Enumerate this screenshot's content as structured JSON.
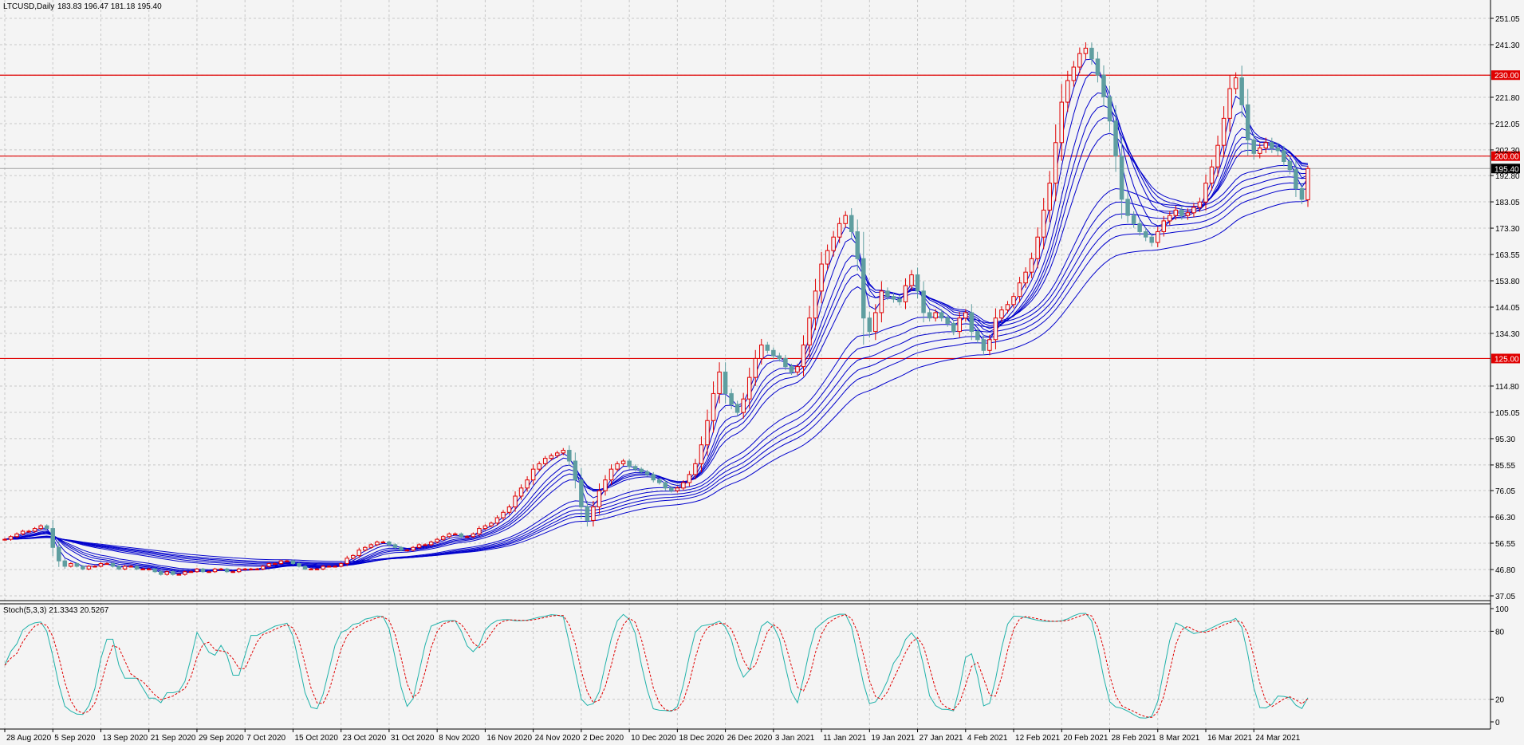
{
  "header": {
    "symbol_label": "LTCUSD,Daily",
    "ohlc_label": "183.83 196.47 181.18 195.40"
  },
  "indicator": {
    "label": "Stoch(5,3,3) 21.3343 20.5267"
  },
  "colors": {
    "background": "#f4f4f4",
    "grid": "#c8c8c8",
    "bull_candle": "#e00000",
    "bear_candle": "#5f9ea0",
    "ma_lines": "#0000cc",
    "level_lines": "#e00000",
    "price_tag": "#000000",
    "stoch_main": "#20b2aa",
    "stoch_signal": "#e00000"
  },
  "chart_data": [
    {
      "type": "candlestick",
      "symbol": "LTCUSD",
      "timeframe": "Daily",
      "current": {
        "open": 183.83,
        "high": 196.47,
        "low": 181.18,
        "close": 195.4
      },
      "ylim": [
        37.05,
        256
      ],
      "yticks": [
        "251.05",
        "241.30",
        "230.00",
        "221.80",
        "212.05",
        "202.30",
        "200.00",
        "192.80",
        "183.05",
        "173.30",
        "163.55",
        "153.80",
        "144.05",
        "134.30",
        "125.00",
        "114.80",
        "105.05",
        "95.30",
        "85.55",
        "76.05",
        "66.30",
        "56.55",
        "46.80",
        "37.05"
      ],
      "x_labels": [
        "28 Aug 2020",
        "5 Sep 2020",
        "13 Sep 2020",
        "21 Sep 2020",
        "29 Sep 2020",
        "7 Oct 2020",
        "15 Oct 2020",
        "23 Oct 2020",
        "31 Oct 2020",
        "8 Nov 2020",
        "16 Nov 2020",
        "24 Nov 2020",
        "2 Dec 2020",
        "10 Dec 2020",
        "18 Dec 2020",
        "26 Dec 2020",
        "3 Jan 2021",
        "11 Jan 2021",
        "19 Jan 2021",
        "27 Jan 2021",
        "4 Feb 2021",
        "12 Feb 2021",
        "20 Feb 2021",
        "28 Feb 2021",
        "8 Mar 2021",
        "16 Mar 2021",
        "24 Mar 2021"
      ],
      "closes": [
        58,
        59,
        60,
        61,
        61,
        62,
        63,
        62,
        55,
        50,
        48,
        49,
        48,
        47,
        48,
        48,
        49,
        49,
        48,
        47,
        48,
        48,
        47,
        47,
        47,
        46,
        45,
        46,
        45,
        45,
        46,
        46,
        47,
        46,
        46,
        47,
        47,
        46,
        46,
        47,
        47,
        47,
        47,
        48,
        49,
        49,
        50,
        50,
        49,
        48,
        47,
        47,
        47,
        48,
        48,
        48,
        49,
        51,
        52,
        54,
        55,
        56,
        57,
        57,
        56,
        55,
        54,
        54,
        55,
        56,
        56,
        57,
        58,
        59,
        60,
        60,
        59,
        59,
        60,
        62,
        63,
        64,
        66,
        68,
        70,
        74,
        77,
        80,
        84,
        86,
        88,
        89,
        90,
        91,
        87,
        80,
        70,
        65,
        70,
        76,
        80,
        84,
        86,
        87,
        85,
        84,
        83,
        82,
        80,
        79,
        77,
        76,
        77,
        79,
        82,
        86,
        93,
        102,
        112,
        120,
        112,
        108,
        105,
        110,
        118,
        125,
        130,
        128,
        126,
        125,
        122,
        120,
        122,
        130,
        140,
        150,
        160,
        165,
        170,
        175,
        178,
        172,
        162,
        140,
        135,
        142,
        150,
        148,
        147,
        146,
        152,
        156,
        150,
        142,
        140,
        142,
        140,
        138,
        135,
        140,
        142,
        135,
        132,
        128,
        132,
        140,
        143,
        145,
        148,
        153,
        157,
        162,
        170,
        180,
        190,
        205,
        220,
        228,
        233,
        238,
        240,
        236,
        230,
        222,
        213,
        200,
        184,
        178,
        175,
        172,
        170,
        168,
        172,
        176,
        178,
        180,
        178,
        179,
        181,
        183,
        190,
        196,
        204,
        214,
        225,
        229,
        219,
        206,
        201,
        203,
        205,
        203,
        202,
        198,
        195,
        188,
        184,
        195.4
      ],
      "ema_periods": [
        3,
        5,
        8,
        10,
        12,
        15,
        30,
        35,
        40,
        45,
        50,
        60
      ],
      "levels": [
        230,
        200,
        125
      ],
      "last_price": 195.4,
      "last_price_label": "195.40",
      "level_labels": [
        "230.00",
        "200.00",
        "125.00"
      ]
    },
    {
      "type": "line",
      "name": "Stoch(5,3,3)",
      "params": [
        5,
        3,
        3
      ],
      "main_last": 21.3343,
      "signal_last": 20.5267,
      "ylim": [
        0,
        100
      ],
      "yticks": [
        "100",
        "80",
        "20",
        "0"
      ],
      "series": [
        {
          "name": "main",
          "color": "#20b2aa",
          "values": []
        },
        {
          "name": "signal",
          "color": "#e00000",
          "values": []
        }
      ]
    }
  ]
}
